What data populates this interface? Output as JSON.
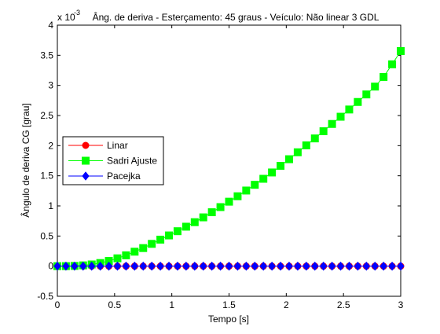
{
  "chart_data": {
    "type": "line",
    "title": "Âng. de deriva - Esterçamento: 45 graus - Veículo: Não linear 3 GDL",
    "xlabel": "Tempo [s]",
    "ylabel": "Ângulo de deriva CG [grau]",
    "y_exponent_label": "x 10",
    "y_exponent": "-3",
    "xlim": [
      0,
      3
    ],
    "ylim": [
      -0.5,
      4
    ],
    "x_ticks": [
      "0",
      "0.5",
      "1",
      "1.5",
      "2",
      "2.5",
      "3"
    ],
    "y_ticks": [
      "-0.5",
      "0",
      "0.5",
      "1",
      "1.5",
      "2",
      "2.5",
      "3",
      "3.5",
      "4"
    ],
    "x_tick_values": [
      0,
      0.5,
      1,
      1.5,
      2,
      2.5,
      3
    ],
    "y_tick_values": [
      -0.5,
      0,
      0.5,
      1,
      1.5,
      2,
      2.5,
      3,
      3.5,
      4
    ],
    "grid": false,
    "legend_position": "left-middle",
    "x": [
      0,
      0.075,
      0.15,
      0.225,
      0.3,
      0.375,
      0.45,
      0.525,
      0.6,
      0.675,
      0.75,
      0.825,
      0.9,
      0.975,
      1.05,
      1.125,
      1.2,
      1.275,
      1.35,
      1.425,
      1.5,
      1.575,
      1.65,
      1.725,
      1.8,
      1.875,
      1.95,
      2.025,
      2.1,
      2.175,
      2.25,
      2.325,
      2.4,
      2.475,
      2.55,
      2.625,
      2.7,
      2.775,
      2.85,
      2.925,
      3.0
    ],
    "series": [
      {
        "name": "Linar",
        "color": "#ff0000",
        "marker": "circle",
        "values": [
          0,
          0,
          0,
          0,
          0,
          0,
          0,
          0,
          0,
          0,
          0,
          0,
          0,
          0,
          0,
          0,
          0,
          0,
          0,
          0,
          0,
          0,
          0,
          0,
          0,
          0,
          0,
          0,
          0,
          0,
          0,
          0,
          0,
          0,
          0,
          0,
          0,
          0,
          0,
          0,
          0
        ]
      },
      {
        "name": "Sadri Ajuste",
        "color": "#00ff00",
        "marker": "square",
        "values": [
          0,
          0.0005,
          0.004,
          0.013,
          0.028,
          0.052,
          0.087,
          0.13,
          0.18,
          0.24,
          0.3,
          0.37,
          0.44,
          0.51,
          0.58,
          0.655,
          0.73,
          0.81,
          0.895,
          0.98,
          1.07,
          1.16,
          1.255,
          1.35,
          1.45,
          1.555,
          1.665,
          1.775,
          1.89,
          2.005,
          2.12,
          2.24,
          2.36,
          2.48,
          2.6,
          2.725,
          2.85,
          2.98,
          3.14,
          3.35,
          3.57
        ]
      },
      {
        "name": "Pacejka",
        "color": "#0000ff",
        "marker": "diamond",
        "values": [
          0,
          0,
          0,
          0,
          0,
          0,
          0,
          0,
          0,
          0,
          0,
          0,
          0,
          0,
          0,
          0,
          0,
          0,
          0,
          0,
          0,
          0,
          0,
          0,
          0,
          0,
          0,
          0,
          0,
          0,
          0,
          0,
          0,
          0,
          0,
          0,
          0,
          0,
          0,
          0,
          0
        ]
      }
    ]
  }
}
